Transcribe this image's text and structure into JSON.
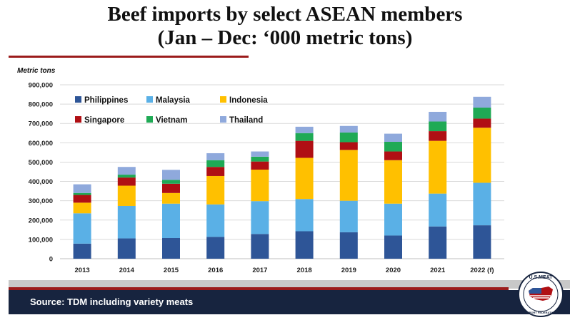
{
  "page": {
    "title_line1": "Beef imports by select ASEAN members",
    "title_line2": "(Jan – Dec: ‘000 metric tons)",
    "source": "Source: TDM including variety meats",
    "logo_text_top": "U.S.MEAT",
    "logo_text_bottom": "EXPORT FEDERATION"
  },
  "colors": {
    "Philippines": "#2e5597",
    "Malaysia": "#5ab0e6",
    "Indonesia": "#ffc000",
    "Singapore": "#b00f14",
    "Vietnam": "#1faa55",
    "Thailand": "#8fa9dc",
    "footer": "#17243f",
    "accent_red": "#9b1b1b"
  },
  "chart_data": {
    "type": "bar",
    "stacked": true,
    "ylabel": "Metric tons",
    "ylim": [
      0,
      900000
    ],
    "yticks": [
      0,
      100000,
      200000,
      300000,
      400000,
      500000,
      600000,
      700000,
      800000,
      900000
    ],
    "ytick_labels": [
      "0",
      "100,000",
      "200,000",
      "300,000",
      "400,000",
      "500,000",
      "600,000",
      "700,000",
      "800,000",
      "900,000"
    ],
    "grid": true,
    "legend_position": "top-left",
    "categories": [
      "2013",
      "2014",
      "2015",
      "2016",
      "2017",
      "2018",
      "2019",
      "2020",
      "2021",
      "2022 (f)"
    ],
    "series": [
      {
        "name": "Philippines",
        "values": [
          78000,
          105000,
          107000,
          113000,
          128000,
          142000,
          137000,
          120000,
          167000,
          173000
        ]
      },
      {
        "name": "Malaysia",
        "values": [
          157000,
          168000,
          178000,
          168000,
          170000,
          167000,
          163000,
          165000,
          170000,
          220000
        ]
      },
      {
        "name": "Indonesia",
        "values": [
          55000,
          105000,
          55000,
          147000,
          163000,
          213000,
          263000,
          225000,
          273000,
          285000
        ]
      },
      {
        "name": "Singapore",
        "values": [
          40000,
          42000,
          48000,
          47000,
          42000,
          88000,
          40000,
          45000,
          50000,
          47000
        ]
      },
      {
        "name": "Vietnam",
        "values": [
          10000,
          15000,
          20000,
          35000,
          25000,
          40000,
          50000,
          50000,
          50000,
          57000
        ]
      },
      {
        "name": "Thailand",
        "values": [
          45000,
          40000,
          52000,
          36000,
          27000,
          33000,
          34000,
          42000,
          50000,
          56000
        ]
      }
    ]
  }
}
